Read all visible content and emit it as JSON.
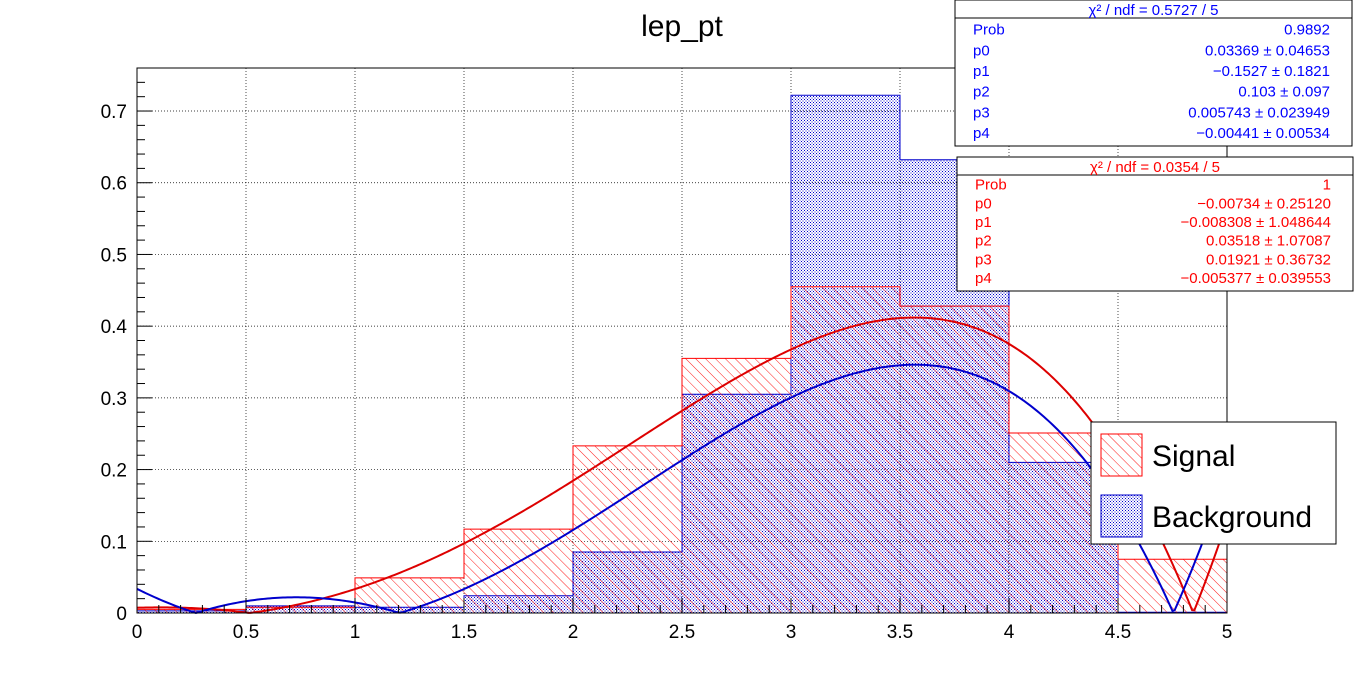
{
  "chart_data": {
    "type": "bar",
    "title": "lep_pt",
    "xlabel": "",
    "ylabel": "",
    "xlim": [
      0,
      5
    ],
    "ylim": [
      0,
      0.76
    ],
    "grid": true,
    "legend_position": "right",
    "x_ticks": [
      "0",
      "0.5",
      "1",
      "1.5",
      "2",
      "2.5",
      "3",
      "3.5",
      "4",
      "4.5",
      "5"
    ],
    "y_ticks": [
      "0",
      "0.1",
      "0.2",
      "0.3",
      "0.4",
      "0.5",
      "0.6",
      "0.7"
    ],
    "bin_edges": [
      0,
      0.5,
      1,
      1.5,
      2,
      2.5,
      3,
      3.5,
      4,
      4.5,
      5
    ],
    "series": [
      {
        "name": "Signal",
        "color": "#ff0000",
        "fill": "hatched",
        "values": [
          0.005,
          0.008,
          0.049,
          0.117,
          0.233,
          0.355,
          0.455,
          0.428,
          0.251,
          0.075
        ],
        "fit": [
          -0.00734,
          -0.008308,
          0.03518,
          0.01921,
          -0.005377
        ]
      },
      {
        "name": "Background",
        "color": "#0000cc",
        "fill": "dotted",
        "values": [
          0.003,
          0.01,
          0.008,
          0.024,
          0.085,
          0.305,
          0.722,
          0.632,
          0.21,
          0.001
        ],
        "fit": [
          0.03369,
          -0.1527,
          0.103,
          0.005743,
          -0.00441
        ]
      }
    ]
  },
  "stats_boxes": [
    {
      "color": "#0000ff",
      "header": "χ² / ndf = 0.5727 / 5",
      "rows": [
        {
          "name": "Prob",
          "value": "0.9892"
        },
        {
          "name": "p0",
          "value": "0.03369 ± 0.04653"
        },
        {
          "name": "p1",
          "value": "−0.1527 ± 0.1821"
        },
        {
          "name": "p2",
          "value": "0.103 ± 0.097"
        },
        {
          "name": "p3",
          "value": "0.005743 ± 0.023949"
        },
        {
          "name": "p4",
          "value": "−0.00441 ± 0.00534"
        }
      ]
    },
    {
      "color": "#ff0000",
      "header": "χ² / ndf = 0.0354 / 5",
      "rows": [
        {
          "name": "Prob",
          "value": "1"
        },
        {
          "name": "p0",
          "value": "−0.00734 ± 0.25120"
        },
        {
          "name": "p1",
          "value": "−0.008308 ± 1.048644"
        },
        {
          "name": "p2",
          "value": "0.03518 ± 1.07087"
        },
        {
          "name": "p3",
          "value": "0.01921 ± 0.36732"
        },
        {
          "name": "p4",
          "value": "−0.005377 ± 0.039553"
        }
      ]
    }
  ]
}
